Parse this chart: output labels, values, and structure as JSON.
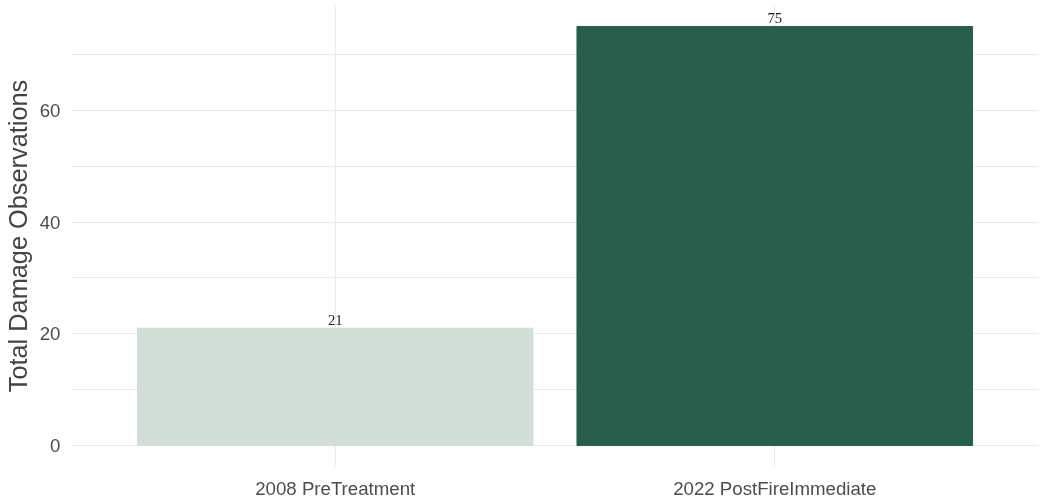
{
  "chart_data": {
    "type": "bar",
    "ylabel": "Total Damage Observations",
    "categories": [
      "2008 PreTreatment",
      "2022 PostFireImmediate"
    ],
    "values": [
      21,
      75
    ],
    "colors": [
      "#d1e0d7",
      "#285e4e"
    ],
    "ylim": [
      -3.75,
      78.75
    ],
    "yticks": [
      0,
      {
        "value": 10,
        "label": null
      },
      20,
      {
        "value": 30,
        "label": null
      },
      40,
      {
        "value": 50,
        "label": null
      },
      60,
      {
        "value": 70,
        "label": null
      }
    ],
    "grid": true,
    "data_labels": true
  }
}
